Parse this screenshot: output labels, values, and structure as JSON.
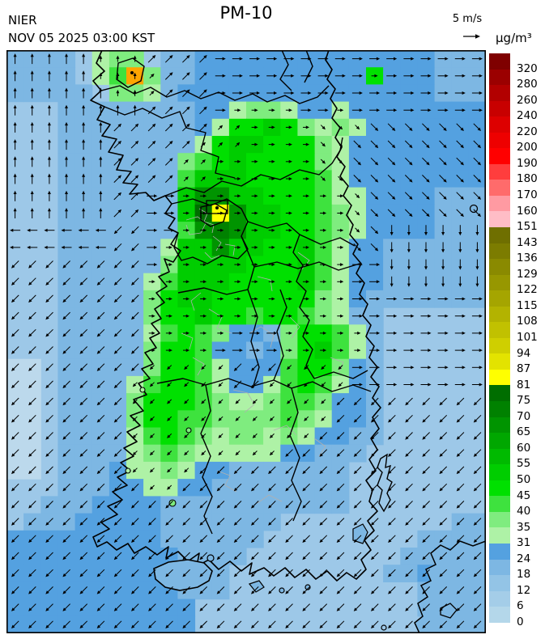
{
  "header": {
    "agency": "NIER",
    "datetime": "NOV 05 2025 03:00 KST",
    "title": "PM-10"
  },
  "wind_legend": {
    "label": "5 m/s"
  },
  "legend": {
    "units": "µg/m³",
    "levels": [
      "320",
      "280",
      "260",
      "240",
      "220",
      "200",
      "190",
      "180",
      "170",
      "160",
      "151",
      "143",
      "136",
      "129",
      "122",
      "115",
      "108",
      "101",
      "94",
      "87",
      "81",
      "75",
      "70",
      "65",
      "60",
      "55",
      "50",
      "45",
      "40",
      "35",
      "31",
      "24",
      "18",
      "12",
      "6",
      "0"
    ],
    "colors": [
      "#7f0000",
      "#9b0000",
      "#b20000",
      "#c80000",
      "#dd0000",
      "#ee0000",
      "#ff0000",
      "#ff3d3d",
      "#ff6b6b",
      "#ff9aa2",
      "#ffbdc6",
      "#6f6f00",
      "#7c7c00",
      "#8a8a00",
      "#979700",
      "#a5a500",
      "#b3b300",
      "#c1c100",
      "#cfcf00",
      "#e3e300",
      "#ffff00",
      "#006e00",
      "#008100",
      "#009400",
      "#00a700",
      "#00ba00",
      "#00cd00",
      "#00e000",
      "#3ee23e",
      "#7fec7f",
      "#aef2a6",
      "#54a1e0",
      "#7db7e3",
      "#93c4e6",
      "#a4cde8",
      "#b4d7ea"
    ]
  },
  "map": {
    "palette": {
      "a": "#bcd9ec",
      "b": "#9dc8e8",
      "c": "#7db7e3",
      "d": "#54a1e0",
      "e": "#aef2a6",
      "f": "#7fec7f",
      "g": "#3ee23e",
      "h": "#00e000",
      "i": "#00cd00",
      "j": "#00ba00",
      "k": "#00a700",
      "l": "#009400",
      "m": "#008100",
      "n": "#006e00",
      "y": "#ffff00",
      "O": "#ffa500"
    },
    "grid": [
      "ccccbeffbccddddddddddddddccc",
      "ccccbegOfccddddddddddhdddccc",
      "cccccbffecdddddddddddddddccc",
      "bbbccccccccddeffeddedddddddd",
      "bbbccccccccdehhihfefeddddddd",
      "bbbccccccccehiihhhfedddddddd",
      "bbbcccccccfghihhhhfedddddddd",
      "bbbcccccccgiiihhhhgedddddddd",
      "bbbcccccccilliihhhgeeddddccc",
      "bbbcccccccinyliihhgfeddddccc",
      "bbbcccccccglmliihhgfeddddccc",
      "bbbcccccceiiliihhigeddcccccc",
      "bbbccccccfiiiihhhigeddcccccc",
      "bbbcccccegiiihhhhigeddcccccc",
      "bbbcccccfhiihhhhhhfedccccccc",
      "bbbcccccfhhihhghhgfeccbbbbbb",
      "bbbccccceghgfddcfhhgecbbbbbb",
      "bbbcccccfhhgddcdfhigecbbbbbb",
      "aabcccccfhhgedddghhfdcbbbbbb",
      "aabcccceghhgeddeghgedcbbbbbb",
      "aabccccfhhhgfeefggfddcbbbbbb",
      "aabccccfhhggffffgfeddcbbbbbb",
      "aabcccceghgfeffefeddccbbbbbb",
      "aabccccefgfeeeeeddcccbbbbbbb",
      "aabcccdeefeddcccccccbbbbbbbb",
      "bbbcccddeeddccccccccbbbbbbbb",
      "bbcccddddcccccccccccbbbbbbbb",
      "bcccdddddcccccccbbbbbbbbbbcc",
      "dddddddddccccccbbbbbbbbbcccc",
      "ddddddddddccccbbbbbbbbbccdcc",
      "ddddddddddcccbbbbbbbbbccddcb",
      "ddddddddddcccbbbbbbbbbbbccbb",
      "dddddddddddbbbbbbbbbbbbbccbb",
      "dddddddddddbbbbbbbbbbbbbbbbb"
    ],
    "wind_grid": [
      "NNNNAAEEEEEEEE",
      "NNNNAAEEEEEEEE",
      "NNNAAAAEEBBBBB",
      "NNNAAAEEEBBBBB",
      "NNNAEEEEEEBBBB",
      "WWWCEEEEEEBSSS",
      "CCCCEEEEEEESSS",
      "CCCCEEEEEEEEEE",
      "CCCCEEEEEEEEEE",
      "CCCCCCCCCCEEEE",
      "CCCCCCCCCCCCCC",
      "CCCCCCCCCCCCCC",
      "CCCCCCCCCCCCCC",
      "CCCCCCCCCCCCCC",
      "CCCCCCCCCCCCCC",
      "CCCCCCCCCCCCCC",
      "CCCCCCCCCCCCCC"
    ]
  }
}
